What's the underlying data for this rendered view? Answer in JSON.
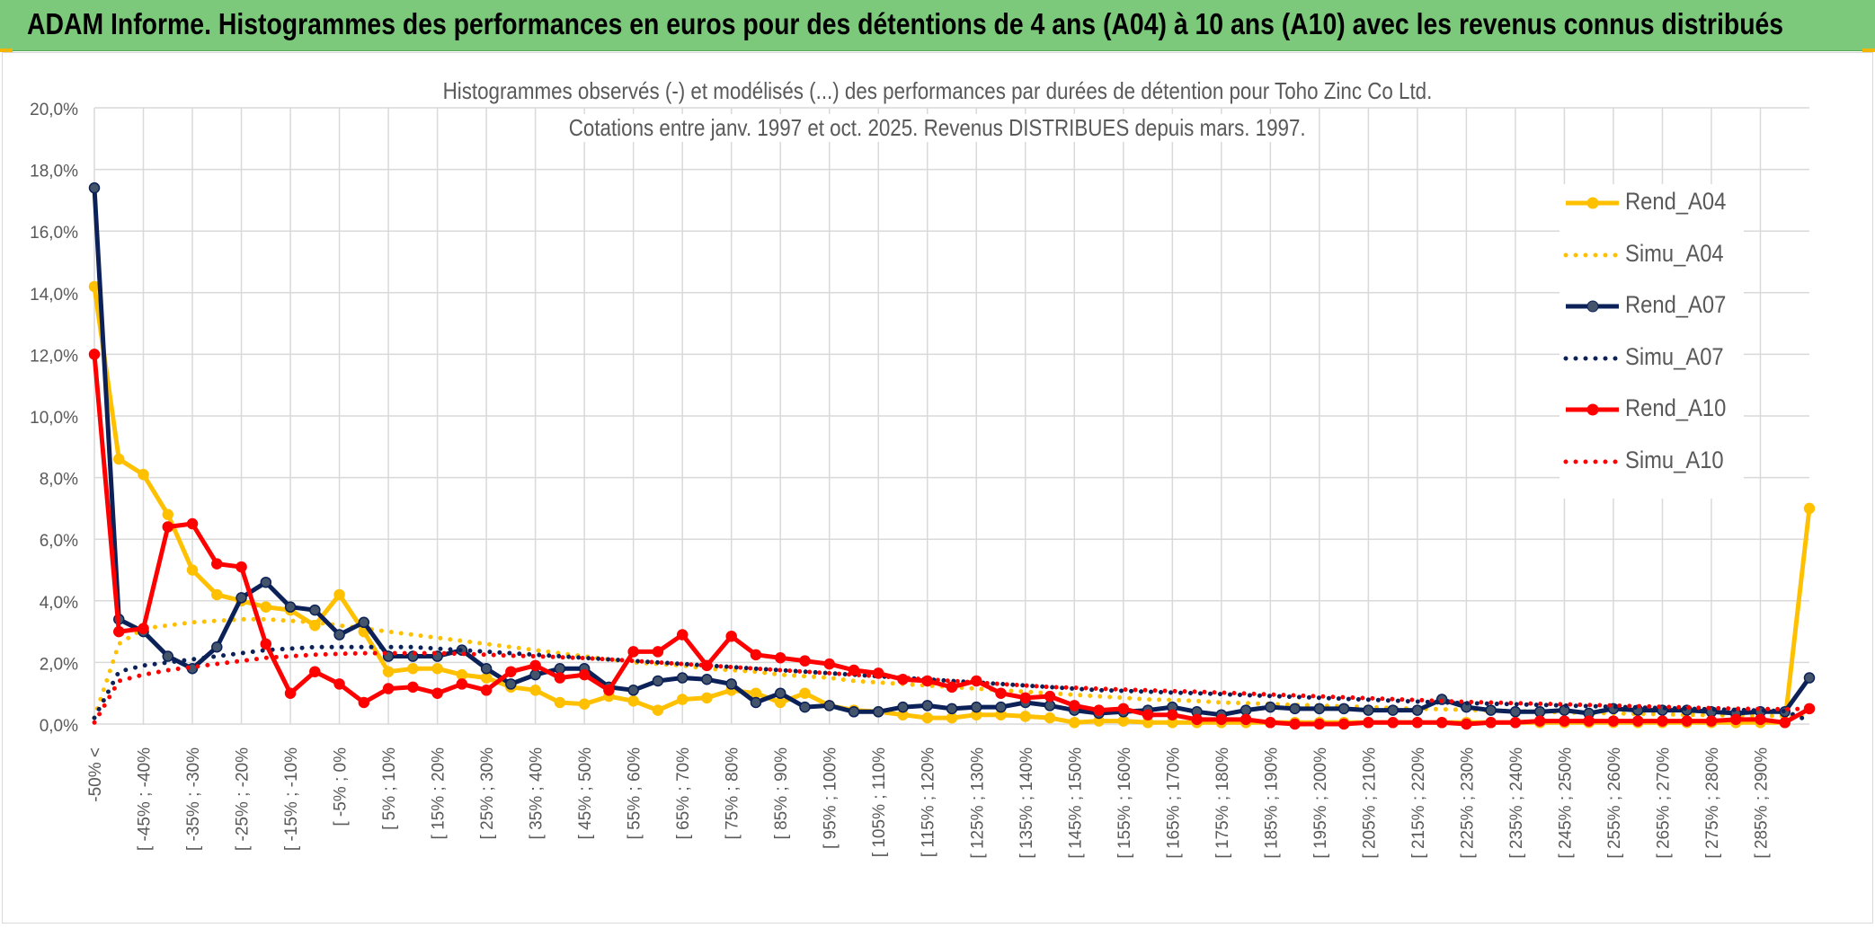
{
  "header": {
    "title": "ADAM Informe. Histogrammes des performances en euros pour des détentions de 4 ans (A04) à 10 ans (A10) avec les revenus connus distribués",
    "background": "#7cc97c"
  },
  "chart_data": {
    "type": "line",
    "title": "Histogrammes observés (-) et modélisés (...) des performances par durées de détention pour Toho Zinc Co Ltd.",
    "subtitle": "Cotations entre janv. 1997 et oct. 2025. Revenus DISTRIBUES depuis mars. 1997.",
    "xlabel": "",
    "ylabel": "",
    "ylim": [
      0,
      20
    ],
    "yticks": [
      "0,0%",
      "2,0%",
      "4,0%",
      "6,0%",
      "8,0%",
      "10,0%",
      "12,0%",
      "14,0%",
      "16,0%",
      "18,0%",
      "20,0%"
    ],
    "grid": true,
    "legend_position": "right",
    "categories": [
      "-50% <",
      "[ -50% ; -45%",
      "[ -45% ; -40%",
      "[ -40% ; -35%",
      "[ -35% ; -30%",
      "[ -30% ; -25%",
      "[ -25% ; -20%",
      "[ -20% ; -15%",
      "[ -15% ; -10%",
      "[ -10% ; -5%",
      "[ -5% ; 0%",
      "[ 0% ; 5%",
      "[ 5% ; 10%",
      "[ 10% ; 15%",
      "[ 15% ; 20%",
      "[ 20% ; 25%",
      "[ 25% ; 30%",
      "[ 30% ; 35%",
      "[ 35% ; 40%",
      "[ 40% ; 45%",
      "[ 45% ; 50%",
      "[ 50% ; 55%",
      "[ 55% ; 60%",
      "[ 60% ; 65%",
      "[ 65% ; 70%",
      "[ 70% ; 75%",
      "[ 75% ; 80%",
      "[ 80% ; 85%",
      "[ 85% ; 90%",
      "[ 90% ; 95%",
      "[ 95% ; 100%",
      "[ 100% ; 105%",
      "[ 105% ; 110%",
      "[ 110% ; 115%",
      "[ 115% ; 120%",
      "[ 120% ; 125%",
      "[ 125% ; 130%",
      "[ 130% ; 135%",
      "[ 135% ; 140%",
      "[ 140% ; 145%",
      "[ 145% ; 150%",
      "[ 150% ; 155%",
      "[ 155% ; 160%",
      "[ 160% ; 165%",
      "[ 165% ; 170%",
      "[ 170% ; 175%",
      "[ 175% ; 180%",
      "[ 180% ; 185%",
      "[ 185% ; 190%",
      "[ 190% ; 195%",
      "[ 195% ; 200%",
      "[ 200% ; 205%",
      "[ 205% ; 210%",
      "[ 210% ; 215%",
      "[ 215% ; 220%",
      "[ 220% ; 225%",
      "[ 225% ; 230%",
      "[ 230% ; 235%",
      "[ 235% ; 240%",
      "[ 240% ; 245%",
      "[ 245% ; 250%",
      "[ 250% ; 255%",
      "[ 255% ; 260%",
      "[ 260% ; 265%",
      "[ 265% ; 270%",
      "[ 270% ; 275%",
      "[ 275% ; 280%",
      "[ 280% ; 285%",
      "[ 285% ; 290%",
      "[ 290% ; 295%",
      ">= 300%"
    ],
    "visible_xtick_labels": [
      "-50% <",
      "[ -45% ; -40%",
      "[ -35% ; -30%",
      "[ -25% ; -20%",
      "[ -15% ; -10%",
      "[ -5% ; 0%",
      "[ 5% ; 10%",
      "[ 15% ; 20%",
      "[ 25% ; 30%",
      "[ 35% ; 40%",
      "[ 45% ; 50%",
      "[ 55% ; 60%",
      "[ 65% ; 70%",
      "[ 75% ; 80%",
      "[ 85% ; 90%",
      "[ 95% ; 100%",
      "[ 105% ; 110%",
      "[ 115% ; 120%",
      "[ 125% ; 130%",
      "[ 135% ; 140%",
      "[ 145% ; 150%",
      "[ 155% ; 160%",
      "[ 165% ; 170%",
      "[ 175% ; 180%",
      "[ 185% ; 190%",
      "[ 195% ; 200%",
      "[ 205% ; 210%",
      "[ 215% ; 220%",
      "[ 225% ; 230%",
      "[ 235% ; 240%",
      "[ 245% ; 250%",
      "[ 255% ; 260%",
      "[ 265% ; 270%",
      "[ 275% ; 280%",
      "[ 285% ; 290%"
    ],
    "series": [
      {
        "name": "Rend_A04",
        "color": "#ffc000",
        "style": "solid",
        "markers": true,
        "values": [
          14.2,
          8.6,
          8.1,
          6.8,
          5.0,
          4.2,
          4.0,
          3.8,
          3.7,
          3.2,
          4.2,
          3.0,
          1.7,
          1.8,
          1.8,
          1.6,
          1.5,
          1.2,
          1.1,
          0.7,
          0.65,
          0.9,
          0.75,
          0.45,
          0.8,
          0.85,
          1.1,
          1.0,
          0.7,
          1.0,
          0.6,
          0.45,
          0.4,
          0.3,
          0.2,
          0.2,
          0.3,
          0.3,
          0.25,
          0.2,
          0.05,
          0.1,
          0.1,
          0.05,
          0.05,
          0.05,
          0.05,
          0.05,
          0.05,
          0.05,
          0.05,
          0.05,
          0.05,
          0.05,
          0.05,
          0.05,
          0.05,
          0.05,
          0.05,
          0.05,
          0.05,
          0.05,
          0.05,
          0.05,
          0.05,
          0.05,
          0.05,
          0.05,
          0.05,
          0.05,
          7.0
        ]
      },
      {
        "name": "Simu_A04",
        "color": "#ffc000",
        "style": "dotted",
        "markers": false,
        "values": [
          0.2,
          2.6,
          3.1,
          3.2,
          3.3,
          3.35,
          3.4,
          3.4,
          3.35,
          3.3,
          3.2,
          3.1,
          3.0,
          2.9,
          2.8,
          2.7,
          2.6,
          2.5,
          2.4,
          2.3,
          2.2,
          2.1,
          2.0,
          1.95,
          1.9,
          1.8,
          1.75,
          1.7,
          1.6,
          1.55,
          1.5,
          1.4,
          1.35,
          1.3,
          1.25,
          1.2,
          1.15,
          1.1,
          1.05,
          1.0,
          0.95,
          0.9,
          0.85,
          0.8,
          0.78,
          0.75,
          0.7,
          0.68,
          0.65,
          0.62,
          0.6,
          0.57,
          0.55,
          0.52,
          0.5,
          0.48,
          0.46,
          0.44,
          0.42,
          0.4,
          0.38,
          0.36,
          0.35,
          0.33,
          0.32,
          0.3,
          0.29,
          0.28,
          0.27,
          0.26,
          0.25
        ]
      },
      {
        "name": "Rend_A07",
        "color": "#0b2158",
        "style": "solid",
        "markers": true,
        "values": [
          17.4,
          3.4,
          3.0,
          2.2,
          1.8,
          2.5,
          4.1,
          4.6,
          3.8,
          3.7,
          2.9,
          3.3,
          2.2,
          2.2,
          2.2,
          2.4,
          1.8,
          1.3,
          1.6,
          1.8,
          1.8,
          1.2,
          1.1,
          1.4,
          1.5,
          1.45,
          1.3,
          0.7,
          1.0,
          0.55,
          0.6,
          0.4,
          0.4,
          0.55,
          0.6,
          0.5,
          0.55,
          0.55,
          0.7,
          0.6,
          0.45,
          0.35,
          0.4,
          0.45,
          0.55,
          0.4,
          0.3,
          0.45,
          0.55,
          0.5,
          0.5,
          0.5,
          0.45,
          0.45,
          0.45,
          0.8,
          0.55,
          0.45,
          0.4,
          0.4,
          0.45,
          0.35,
          0.5,
          0.45,
          0.45,
          0.45,
          0.4,
          0.35,
          0.4,
          0.4,
          1.5
        ]
      },
      {
        "name": "Simu_A07",
        "color": "#0b2158",
        "style": "dotted",
        "markers": false,
        "values": [
          0.2,
          1.7,
          1.9,
          2.0,
          2.1,
          2.2,
          2.3,
          2.4,
          2.45,
          2.5,
          2.5,
          2.5,
          2.5,
          2.5,
          2.45,
          2.4,
          2.35,
          2.3,
          2.25,
          2.2,
          2.15,
          2.1,
          2.05,
          2.0,
          1.95,
          1.9,
          1.85,
          1.8,
          1.75,
          1.7,
          1.65,
          1.6,
          1.55,
          1.5,
          1.45,
          1.4,
          1.35,
          1.3,
          1.25,
          1.2,
          1.15,
          1.1,
          1.08,
          1.05,
          1.02,
          1.0,
          0.97,
          0.94,
          0.91,
          0.88,
          0.85,
          0.82,
          0.79,
          0.76,
          0.73,
          0.7,
          0.68,
          0.66,
          0.64,
          0.62,
          0.6,
          0.58,
          0.56,
          0.54,
          0.52,
          0.5,
          0.48,
          0.46,
          0.44,
          0.42,
          0.1
        ]
      },
      {
        "name": "Rend_A10",
        "color": "#ff0000",
        "style": "solid",
        "markers": true,
        "values": [
          12.0,
          3.0,
          3.1,
          6.4,
          6.5,
          5.2,
          5.1,
          2.6,
          1.0,
          1.7,
          1.3,
          0.7,
          1.15,
          1.2,
          1.0,
          1.3,
          1.1,
          1.7,
          1.9,
          1.5,
          1.6,
          1.1,
          2.35,
          2.35,
          2.9,
          1.9,
          2.85,
          2.25,
          2.15,
          2.05,
          1.95,
          1.75,
          1.65,
          1.45,
          1.4,
          1.2,
          1.4,
          1.0,
          0.85,
          0.9,
          0.6,
          0.45,
          0.5,
          0.3,
          0.3,
          0.15,
          0.15,
          0.15,
          0.05,
          0.0,
          0.0,
          0.0,
          0.05,
          0.05,
          0.05,
          0.05,
          0.0,
          0.05,
          0.05,
          0.1,
          0.1,
          0.1,
          0.1,
          0.1,
          0.1,
          0.1,
          0.1,
          0.15,
          0.15,
          0.05,
          0.5
        ]
      },
      {
        "name": "Simu_A10",
        "color": "#ff0000",
        "style": "dotted",
        "markers": false,
        "values": [
          0.05,
          1.4,
          1.6,
          1.75,
          1.85,
          1.95,
          2.05,
          2.15,
          2.2,
          2.25,
          2.28,
          2.3,
          2.3,
          2.3,
          2.3,
          2.28,
          2.25,
          2.22,
          2.2,
          2.17,
          2.14,
          2.1,
          2.05,
          2.0,
          1.95,
          1.9,
          1.85,
          1.8,
          1.75,
          1.7,
          1.65,
          1.6,
          1.55,
          1.5,
          1.45,
          1.4,
          1.35,
          1.3,
          1.25,
          1.2,
          1.18,
          1.15,
          1.12,
          1.1,
          1.07,
          1.05,
          1.02,
          0.99,
          0.96,
          0.93,
          0.9,
          0.87,
          0.84,
          0.81,
          0.78,
          0.75,
          0.72,
          0.7,
          0.68,
          0.66,
          0.64,
          0.62,
          0.6,
          0.58,
          0.56,
          0.54,
          0.52,
          0.5,
          0.49,
          0.48,
          0.5
        ]
      }
    ]
  }
}
